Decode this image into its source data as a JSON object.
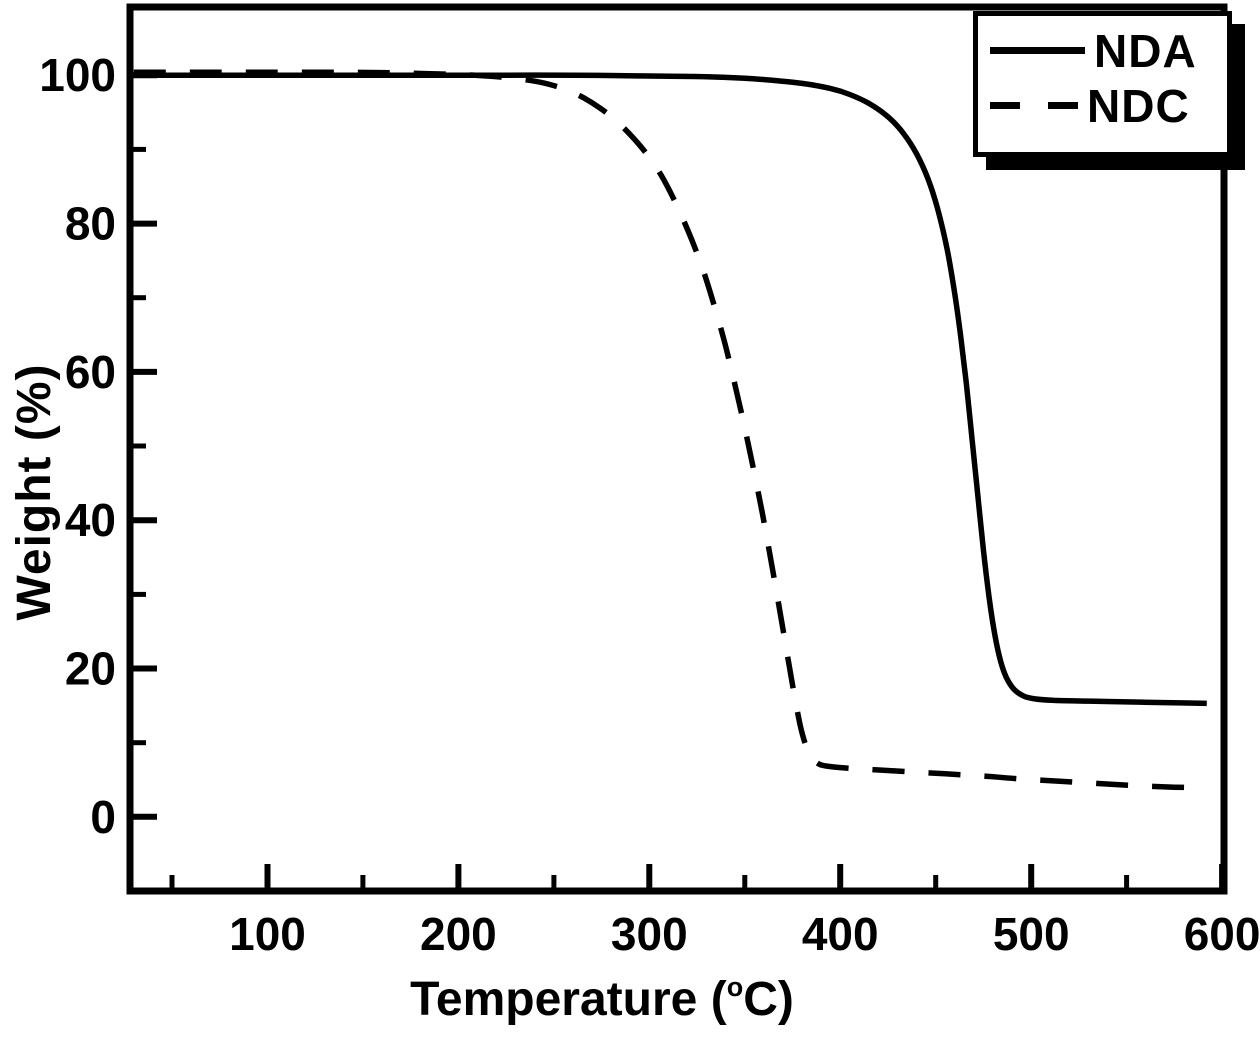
{
  "figure": {
    "background": "#ffffff",
    "foreground": "#000000"
  },
  "chart_data": {
    "type": "line",
    "title": "",
    "xlabel_prefix": "Temperature (",
    "xlabel_sup": "o",
    "xlabel_suffix": "C)",
    "ylabel": "Weight (%)",
    "x_range": [
      28,
      601
    ],
    "y_range": [
      -10,
      109.2
    ],
    "x_major_ticks": [
      100,
      200,
      300,
      400,
      500,
      600
    ],
    "x_minor_ticks": [
      50,
      150,
      250,
      350,
      450,
      550
    ],
    "y_major_ticks": [
      0,
      20,
      40,
      60,
      80,
      100
    ],
    "y_minor_ticks": [
      10,
      30,
      50,
      70,
      90
    ],
    "grid": false,
    "legend_position": "top-right",
    "line_width": 5.5,
    "dash_pattern": "32 24",
    "series": [
      {
        "name": "NDA",
        "line_style": "solid",
        "color": "#000000",
        "points": [
          [
            30,
            100
          ],
          [
            60,
            100
          ],
          [
            100,
            100
          ],
          [
            140,
            100
          ],
          [
            180,
            100
          ],
          [
            220,
            100
          ],
          [
            260,
            100
          ],
          [
            300,
            99.9
          ],
          [
            330,
            99.8
          ],
          [
            350,
            99.6
          ],
          [
            365,
            99.3
          ],
          [
            380,
            98.9
          ],
          [
            395,
            98.2
          ],
          [
            405,
            97.4
          ],
          [
            415,
            96.2
          ],
          [
            425,
            94.4
          ],
          [
            433,
            92.2
          ],
          [
            440,
            89.4
          ],
          [
            446,
            86
          ],
          [
            451,
            82
          ],
          [
            456,
            76.5
          ],
          [
            460,
            70.5
          ],
          [
            463,
            65
          ],
          [
            466,
            58.5
          ],
          [
            469,
            51
          ],
          [
            472,
            43.5
          ],
          [
            475,
            36
          ],
          [
            478,
            29.5
          ],
          [
            481,
            24.5
          ],
          [
            484,
            21
          ],
          [
            487,
            18.8
          ],
          [
            491,
            17.2
          ],
          [
            496,
            16.3
          ],
          [
            502,
            15.9
          ],
          [
            512,
            15.7
          ],
          [
            530,
            15.6
          ],
          [
            550,
            15.5
          ],
          [
            570,
            15.4
          ],
          [
            592,
            15.3
          ]
        ]
      },
      {
        "name": "NDC",
        "line_style": "dashed",
        "color": "#000000",
        "points": [
          [
            30,
            100.4
          ],
          [
            60,
            100.4
          ],
          [
            100,
            100.4
          ],
          [
            140,
            100.4
          ],
          [
            170,
            100.3
          ],
          [
            200,
            100.1
          ],
          [
            215,
            99.9
          ],
          [
            228,
            99.6
          ],
          [
            240,
            99.2
          ],
          [
            250,
            98.6
          ],
          [
            258,
            97.9
          ],
          [
            266,
            96.9
          ],
          [
            274,
            95.6
          ],
          [
            282,
            94
          ],
          [
            290,
            92
          ],
          [
            298,
            89.6
          ],
          [
            306,
            86.6
          ],
          [
            313,
            83.2
          ],
          [
            320,
            79.2
          ],
          [
            327,
            74.6
          ],
          [
            333,
            69.8
          ],
          [
            339,
            64.4
          ],
          [
            344,
            59.2
          ],
          [
            349,
            53.6
          ],
          [
            354,
            47.6
          ],
          [
            359,
            41.2
          ],
          [
            363,
            35.6
          ],
          [
            367,
            29.8
          ],
          [
            371,
            23.8
          ],
          [
            375,
            17.8
          ],
          [
            379,
            12.4
          ],
          [
            382,
            9.6
          ],
          [
            385,
            8
          ],
          [
            389,
            7.1
          ],
          [
            394,
            6.8
          ],
          [
            402,
            6.6
          ],
          [
            415,
            6.4
          ],
          [
            435,
            6.1
          ],
          [
            455,
            5.8
          ],
          [
            475,
            5.5
          ],
          [
            495,
            5.1
          ],
          [
            515,
            4.8
          ],
          [
            535,
            4.5
          ],
          [
            555,
            4.2
          ],
          [
            575,
            4
          ],
          [
            592,
            3.9
          ]
        ]
      }
    ]
  },
  "legend": {
    "entries": [
      {
        "label": "NDA",
        "style": "solid"
      },
      {
        "label": "NDC",
        "style": "dashed"
      }
    ]
  }
}
